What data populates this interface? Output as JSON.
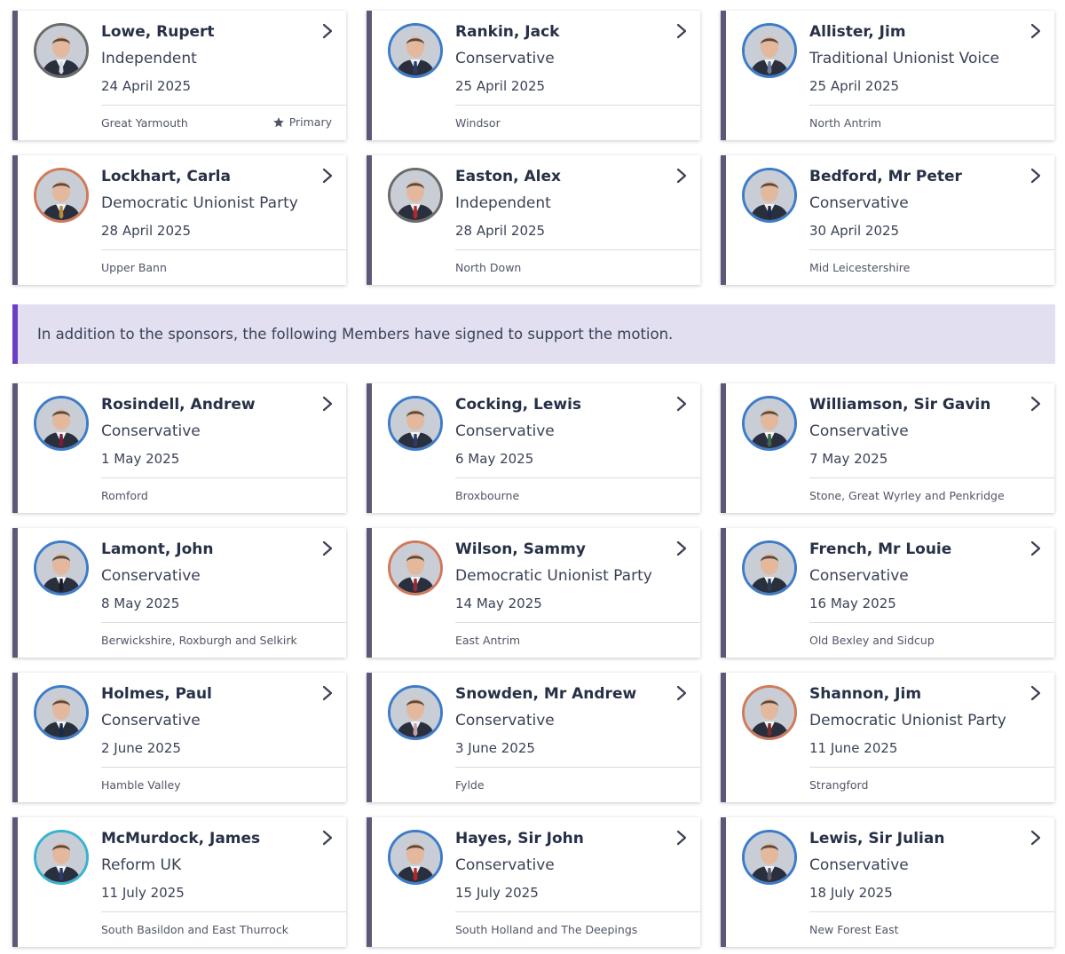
{
  "notice": {
    "text": "In addition to the sponsors, the following Members have signed to support the motion."
  },
  "primary_label": "Primary",
  "party_colors": {
    "Independent": "#6b6b6b",
    "Conservative": "#3d7cc9",
    "Traditional Unionist Voice": "#3d7cc9",
    "Democratic Unionist Party": "#d07a5a",
    "Reform UK": "#38b3cf"
  },
  "sponsors": [
    {
      "name": "Lowe, Rupert",
      "party": "Independent",
      "date": "24 April 2025",
      "constituency": "Great Yarmouth",
      "primary": true,
      "tie": "#d8d8e4",
      "avatar_border": "#6b6b6b"
    },
    {
      "name": "Rankin, Jack",
      "party": "Conservative",
      "date": "25 April 2025",
      "constituency": "Windsor",
      "primary": false,
      "tie": "#2b3a6b",
      "avatar_border": "#3d7cc9"
    },
    {
      "name": "Allister, Jim",
      "party": "Traditional Unionist Voice",
      "date": "25 April 2025",
      "constituency": "North Antrim",
      "primary": false,
      "tie": "#6d7c9b",
      "avatar_border": "#3d7cc9"
    },
    {
      "name": "Lockhart, Carla",
      "party": "Democratic Unionist Party",
      "date": "28 April 2025",
      "constituency": "Upper Bann",
      "primary": false,
      "tie": "#b68a3a",
      "avatar_border": "#d07a5a"
    },
    {
      "name": "Easton, Alex",
      "party": "Independent",
      "date": "28 April 2025",
      "constituency": "North Down",
      "primary": false,
      "tie": "#b52a2a",
      "avatar_border": "#6b6b6b"
    },
    {
      "name": "Bedford, Mr Peter",
      "party": "Conservative",
      "date": "30 April 2025",
      "constituency": "Mid Leicestershire",
      "primary": false,
      "tie": "#1f2a4a",
      "avatar_border": "#3d7cc9"
    }
  ],
  "supporters": [
    {
      "name": "Rosindell, Andrew",
      "party": "Conservative",
      "date": "1 May 2025",
      "constituency": "Romford",
      "tie": "#7a1d3a",
      "avatar_border": "#3d7cc9"
    },
    {
      "name": "Cocking, Lewis",
      "party": "Conservative",
      "date": "6 May 2025",
      "constituency": "Broxbourne",
      "tie": "#2a3a6a",
      "avatar_border": "#3d7cc9"
    },
    {
      "name": "Williamson, Sir Gavin",
      "party": "Conservative",
      "date": "7 May 2025",
      "constituency": "Stone, Great Wyrley and Penkridge",
      "tie": "#3a6a4a",
      "avatar_border": "#3d7cc9"
    },
    {
      "name": "Lamont, John",
      "party": "Conservative",
      "date": "8 May 2025",
      "constituency": "Berwickshire, Roxburgh and Selkirk",
      "tie": "#1a1a2a",
      "avatar_border": "#3d7cc9"
    },
    {
      "name": "Wilson, Sammy",
      "party": "Democratic Unionist Party",
      "date": "14 May 2025",
      "constituency": "East Antrim",
      "tie": "#9a2a3a",
      "avatar_border": "#d07a5a"
    },
    {
      "name": "French, Mr Louie",
      "party": "Conservative",
      "date": "16 May 2025",
      "constituency": "Old Bexley and Sidcup",
      "tie": "#2a3a5a",
      "avatar_border": "#3d7cc9"
    },
    {
      "name": "Holmes, Paul",
      "party": "Conservative",
      "date": "2 June 2025",
      "constituency": "Hamble Valley",
      "tie": "#1a2a4a",
      "avatar_border": "#3d7cc9"
    },
    {
      "name": "Snowden, Mr Andrew",
      "party": "Conservative",
      "date": "3 June 2025",
      "constituency": "Fylde",
      "tie": "#c8a0a8",
      "avatar_border": "#3d7cc9"
    },
    {
      "name": "Shannon, Jim",
      "party": "Democratic Unionist Party",
      "date": "11 June 2025",
      "constituency": "Strangford",
      "tie": "#7a2a2a",
      "avatar_border": "#d07a5a"
    },
    {
      "name": "McMurdock, James",
      "party": "Reform UK",
      "date": "11 July 2025",
      "constituency": "South Basildon and East Thurrock",
      "tie": "#2a3a6a",
      "avatar_border": "#38b3cf"
    },
    {
      "name": "Hayes, Sir John",
      "party": "Conservative",
      "date": "15 July 2025",
      "constituency": "South Holland and The Deepings",
      "tie": "#b02a2a",
      "avatar_border": "#3d7cc9"
    },
    {
      "name": "Lewis, Sir Julian",
      "party": "Conservative",
      "date": "18 July 2025",
      "constituency": "New Forest East",
      "tie": "#5a5a6a",
      "avatar_border": "#3d7cc9"
    }
  ]
}
